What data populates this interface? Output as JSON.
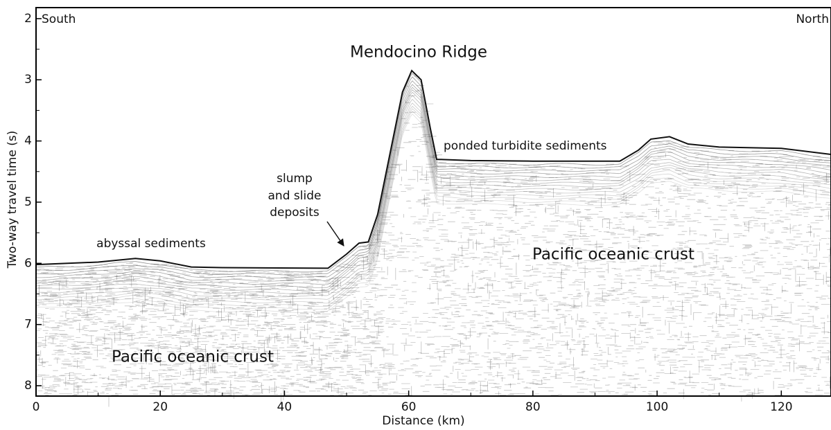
{
  "chart_data": {
    "type": "line",
    "xlabel": "Distance (km)",
    "ylabel": "Two-way travel time (s)",
    "annotations": {
      "south": "South",
      "north": "North",
      "ridge": "Mendocino Ridge",
      "ponded": "ponded turbidite sediments",
      "slump": [
        "slump",
        "and slide",
        "deposits"
      ],
      "abyssal": "abyssal sediments",
      "crust_left": "Pacific oceanic crust",
      "crust_right": "Pacific oceanic crust"
    },
    "x": [
      0,
      10,
      16,
      20,
      25,
      30,
      47,
      50,
      52,
      53.5,
      55,
      57,
      59,
      60.5,
      62,
      63.5,
      64.5,
      70,
      80,
      94,
      97,
      99,
      102,
      105,
      110,
      120,
      128
    ],
    "values": [
      6.02,
      5.98,
      5.92,
      5.96,
      6.06,
      6.07,
      6.08,
      5.85,
      5.67,
      5.65,
      5.2,
      4.2,
      3.2,
      2.85,
      3.0,
      3.8,
      4.3,
      4.32,
      4.33,
      4.33,
      4.15,
      3.97,
      3.93,
      4.05,
      4.1,
      4.12,
      4.22
    ],
    "color": "#111111",
    "xlim": [
      0,
      128
    ],
    "xticks": [
      0,
      20,
      40,
      60,
      80,
      100,
      120
    ],
    "xminorticks": [
      10,
      30,
      50,
      70,
      90,
      110
    ],
    "ylim": [
      8.17,
      1.82
    ],
    "yticks": [
      2,
      3,
      4,
      5,
      6,
      7,
      8
    ],
    "yminorticks": [
      2.5,
      3.5,
      4.5,
      5.5,
      6.5,
      7.5
    ]
  }
}
